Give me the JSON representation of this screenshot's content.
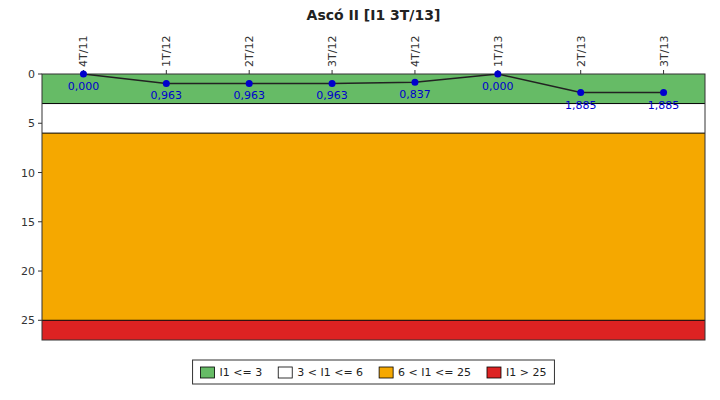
{
  "chart_data": {
    "type": "line",
    "title": "Ascó II [I1 3T/13]",
    "categories": [
      "4T/11",
      "1T/12",
      "2T/12",
      "3T/12",
      "4T/12",
      "1T/13",
      "2T/13",
      "3T/13"
    ],
    "values": [
      0.0,
      0.963,
      0.963,
      0.963,
      0.837,
      0.0,
      1.885,
      1.885
    ],
    "value_labels": [
      "0,000",
      "0,963",
      "0,963",
      "0,963",
      "0,837",
      "0,000",
      "1,885",
      "1,885"
    ],
    "data_labels": true,
    "color": "#0000cc",
    "marker": "circle",
    "ylim": [
      0,
      27
    ],
    "yticks": [
      0,
      5,
      10,
      15,
      20,
      25
    ],
    "grid": false,
    "legend": "bottom",
    "bands": [
      {
        "name": "I1 <= 3",
        "range": [
          0,
          3
        ],
        "color": "#66bb66"
      },
      {
        "name": "3 < I1 <= 6",
        "range": [
          3,
          6
        ],
        "color": "#ffffff"
      },
      {
        "name": "6 < I1 <= 25",
        "range": [
          6,
          25
        ],
        "color": "#f5a800"
      },
      {
        "name": "I1 > 25",
        "range": [
          25,
          27
        ],
        "color": "#dd2222"
      }
    ]
  }
}
